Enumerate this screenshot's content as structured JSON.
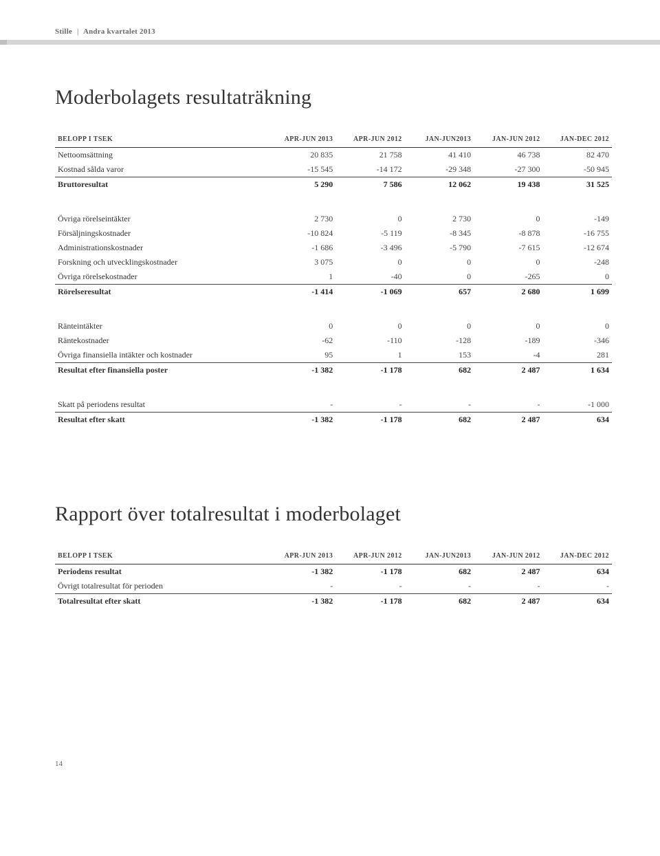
{
  "header": {
    "brand": "Stille",
    "period": "Andra kvartalet 2013"
  },
  "title1": "Moderbolagets resultaträkning",
  "title2": "Rapport över totalresultat i moderbolaget",
  "columns": {
    "label": "BELOPP I TSEK",
    "c1": "APR-JUN 2013",
    "c2": "APR-JUN 2012",
    "c3": "JAN-JUN2013",
    "c4": "JAN-JUN 2012",
    "c5": "JAN-DEC 2012"
  },
  "table1": {
    "group1": [
      {
        "label": "Nettoomsättning",
        "v": [
          "20 835",
          "21 758",
          "41 410",
          "46 738",
          "82 470"
        ]
      },
      {
        "label": "Kostnad sålda varor",
        "v": [
          "-15 545",
          "-14 172",
          "-29 348",
          "-27 300",
          "-50 945"
        ]
      }
    ],
    "sum1": {
      "label": "Bruttoresultat",
      "v": [
        "5 290",
        "7 586",
        "12 062",
        "19 438",
        "31 525"
      ]
    },
    "group2": [
      {
        "label": "Övriga rörelseintäkter",
        "v": [
          "2 730",
          "0",
          "2 730",
          "0",
          "-149"
        ]
      },
      {
        "label": "Försäljningskostnader",
        "v": [
          "-10 824",
          "-5 119",
          "-8 345",
          "-8 878",
          "-16 755"
        ]
      },
      {
        "label": "Administrationskostnader",
        "v": [
          "-1 686",
          "-3 496",
          "-5 790",
          "-7 615",
          "-12 674"
        ]
      },
      {
        "label": "Forskning och utvecklingskostnader",
        "v": [
          "3 075",
          "0",
          "0",
          "0",
          "-248"
        ]
      },
      {
        "label": "Övriga rörelsekostnader",
        "v": [
          "1",
          "-40",
          "0",
          "-265",
          "0"
        ]
      }
    ],
    "sum2": {
      "label": "Rörelseresultat",
      "v": [
        "-1 414",
        "-1 069",
        "657",
        "2 680",
        "1 699"
      ]
    },
    "group3": [
      {
        "label": "Ränteintäkter",
        "v": [
          "0",
          "0",
          "0",
          "0",
          "0"
        ]
      },
      {
        "label": "Räntekostnader",
        "v": [
          "-62",
          "-110",
          "-128",
          "-189",
          "-346"
        ]
      },
      {
        "label": "Övriga finansiella intäkter och kostnader",
        "v": [
          "95",
          "1",
          "153",
          "-4",
          "281"
        ]
      }
    ],
    "sum3": {
      "label": "Resultat efter finansiella poster",
      "v": [
        "-1 382",
        "-1 178",
        "682",
        "2 487",
        "1 634"
      ]
    },
    "group4": [
      {
        "label": "Skatt på periodens resultat",
        "v": [
          "-",
          "-",
          "-",
          "-",
          "-1 000"
        ]
      }
    ],
    "sum4": {
      "label": "Resultat efter skatt",
      "v": [
        "-1 382",
        "-1 178",
        "682",
        "2 487",
        "634"
      ]
    }
  },
  "table2": {
    "rows": [
      {
        "label": "Periodens resultat",
        "v": [
          "-1 382",
          "-1 178",
          "682",
          "2 487",
          "634"
        ],
        "bold": true
      },
      {
        "label": "Övrigt totalresultat för perioden",
        "v": [
          "-",
          "-",
          "-",
          "-",
          "-"
        ],
        "bold": false
      }
    ],
    "sum": {
      "label": "Totalresultat efter skatt",
      "v": [
        "-1 382",
        "-1 178",
        "682",
        "2 487",
        "634"
      ]
    }
  },
  "pageNum": "14"
}
